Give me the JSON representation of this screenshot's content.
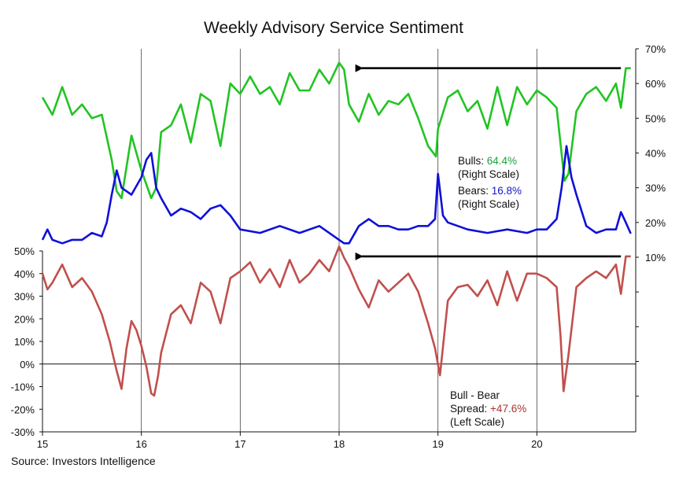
{
  "title": "Weekly Advisory Service Sentiment",
  "source": "Source: Investors Intelligence",
  "colors": {
    "bulls": "#22c422",
    "bears": "#1010d8",
    "spread": "#c0504d",
    "axis": "#111111",
    "grid": "#444444"
  },
  "annotations": {
    "bulls": {
      "label": "Bulls: ",
      "value": "64.4%",
      "note": "(Right Scale)"
    },
    "bears": {
      "label": "Bears: ",
      "value": "16.8%",
      "note": "(Right Scale)"
    },
    "spread": {
      "line1": "Bull - Bear",
      "label": "Spread: ",
      "value": "+47.6%",
      "note": "(Left Scale)"
    }
  },
  "chart_data": {
    "type": "line",
    "title": "Weekly Advisory Service Sentiment",
    "x_range": [
      15,
      21
    ],
    "x_ticks": [
      15,
      16,
      17,
      18,
      19,
      20
    ],
    "x_tick_labels": [
      "15",
      "16",
      "17",
      "18",
      "19",
      "20"
    ],
    "right_axis": {
      "range": [
        10,
        70
      ],
      "ticks": [
        10,
        20,
        30,
        40,
        50,
        60,
        70
      ],
      "tick_labels": [
        "10%",
        "20%",
        "30%",
        "40%",
        "50%",
        "60%",
        "70%"
      ],
      "extends_to": -30
    },
    "left_axis": {
      "range": [
        -30,
        50
      ],
      "ticks": [
        -30,
        -20,
        -10,
        0,
        10,
        20,
        30,
        40,
        50
      ],
      "tick_labels": [
        "-30%",
        "-20%",
        "-10%",
        "0%",
        "10%",
        "20%",
        "30%",
        "40%",
        "50%"
      ]
    },
    "series": [
      {
        "name": "Bulls",
        "axis": "right",
        "x": [
          15.0,
          15.1,
          15.2,
          15.3,
          15.4,
          15.5,
          15.6,
          15.7,
          15.75,
          15.8,
          15.9,
          16.0,
          16.1,
          16.15,
          16.2,
          16.3,
          16.4,
          16.5,
          16.6,
          16.7,
          16.8,
          16.9,
          17.0,
          17.1,
          17.2,
          17.3,
          17.4,
          17.5,
          17.6,
          17.7,
          17.8,
          17.9,
          18.0,
          18.05,
          18.1,
          18.2,
          18.3,
          18.4,
          18.5,
          18.6,
          18.7,
          18.8,
          18.9,
          18.98,
          19.0,
          19.1,
          19.2,
          19.3,
          19.4,
          19.5,
          19.6,
          19.7,
          19.8,
          19.9,
          20.0,
          20.1,
          20.2,
          20.28,
          20.32,
          20.4,
          20.5,
          20.6,
          20.7,
          20.8,
          20.85,
          20.9,
          20.95
        ],
        "values": [
          56,
          51,
          59,
          51,
          54,
          50,
          51,
          38,
          29,
          27,
          45,
          35,
          27,
          30,
          46,
          48,
          54,
          43,
          57,
          55,
          42,
          60,
          57,
          62,
          57,
          59,
          54,
          63,
          58,
          58,
          64,
          60,
          66,
          64,
          54,
          49,
          57,
          51,
          55,
          54,
          57,
          50,
          42,
          39,
          47,
          56,
          58,
          52,
          55,
          47,
          59,
          48,
          59,
          54,
          58,
          56,
          53,
          32,
          34,
          52,
          57,
          59,
          55,
          60,
          53,
          64.4,
          64.4
        ]
      },
      {
        "name": "Bears",
        "axis": "right",
        "x": [
          15.0,
          15.05,
          15.1,
          15.2,
          15.3,
          15.4,
          15.5,
          15.6,
          15.65,
          15.7,
          15.75,
          15.8,
          15.9,
          16.0,
          16.05,
          16.1,
          16.15,
          16.2,
          16.3,
          16.4,
          16.5,
          16.6,
          16.7,
          16.8,
          16.9,
          17.0,
          17.2,
          17.4,
          17.6,
          17.8,
          18.0,
          18.05,
          18.1,
          18.2,
          18.3,
          18.4,
          18.5,
          18.6,
          18.7,
          18.8,
          18.9,
          18.97,
          19.0,
          19.05,
          19.1,
          19.3,
          19.5,
          19.7,
          19.9,
          20.0,
          20.1,
          20.2,
          20.25,
          20.3,
          20.35,
          20.4,
          20.5,
          20.6,
          20.7,
          20.8,
          20.85,
          20.9,
          20.95
        ],
        "values": [
          15,
          18,
          15,
          14,
          15,
          15,
          17,
          16,
          20,
          28,
          35,
          30,
          28,
          33,
          38,
          40,
          30,
          27,
          22,
          24,
          23,
          21,
          24,
          25,
          22,
          18,
          17,
          19,
          17,
          19,
          15,
          14,
          14,
          19,
          21,
          19,
          19,
          18,
          18,
          19,
          19,
          21,
          34,
          22,
          20,
          18,
          17,
          18,
          17,
          18,
          18,
          21,
          30,
          42,
          33,
          28,
          19,
          17,
          18,
          18,
          23,
          20,
          16.8
        ]
      },
      {
        "name": "Bull - Bear Spread",
        "axis": "left",
        "x": [
          15.0,
          15.05,
          15.1,
          15.2,
          15.3,
          15.4,
          15.5,
          15.6,
          15.68,
          15.75,
          15.8,
          15.85,
          15.9,
          15.95,
          16.0,
          16.05,
          16.1,
          16.13,
          16.17,
          16.2,
          16.3,
          16.4,
          16.5,
          16.6,
          16.7,
          16.8,
          16.9,
          17.0,
          17.1,
          17.2,
          17.3,
          17.4,
          17.5,
          17.6,
          17.7,
          17.8,
          17.9,
          18.0,
          18.05,
          18.1,
          18.2,
          18.3,
          18.4,
          18.5,
          18.6,
          18.7,
          18.8,
          18.9,
          18.97,
          19.02,
          19.1,
          19.2,
          19.3,
          19.4,
          19.5,
          19.6,
          19.7,
          19.8,
          19.9,
          20.0,
          20.1,
          20.2,
          20.24,
          20.27,
          20.32,
          20.4,
          20.5,
          20.6,
          20.7,
          20.8,
          20.85,
          20.9,
          20.95
        ],
        "values": [
          40,
          33,
          36,
          44,
          34,
          38,
          32,
          22,
          10,
          -3,
          -11,
          7,
          19,
          15,
          8,
          -1,
          -13,
          -14,
          -5,
          5,
          22,
          26,
          18,
          36,
          32,
          18,
          38,
          41,
          45,
          36,
          42,
          34,
          46,
          36,
          40,
          46,
          41,
          52,
          47,
          43,
          33,
          25,
          37,
          32,
          36,
          40,
          32,
          18,
          7,
          -5,
          28,
          34,
          35,
          30,
          37,
          26,
          41,
          28,
          40,
          40,
          38,
          34,
          12,
          -12,
          4,
          34,
          38,
          41,
          38,
          44,
          31,
          47.6,
          47.6
        ]
      }
    ],
    "arrows": [
      {
        "axis": "right",
        "level": 64.4,
        "from_x": 20.85,
        "to_x": 18.18
      },
      {
        "axis": "left",
        "level": 47.6,
        "from_x": 20.85,
        "to_x": 18.18
      }
    ]
  }
}
